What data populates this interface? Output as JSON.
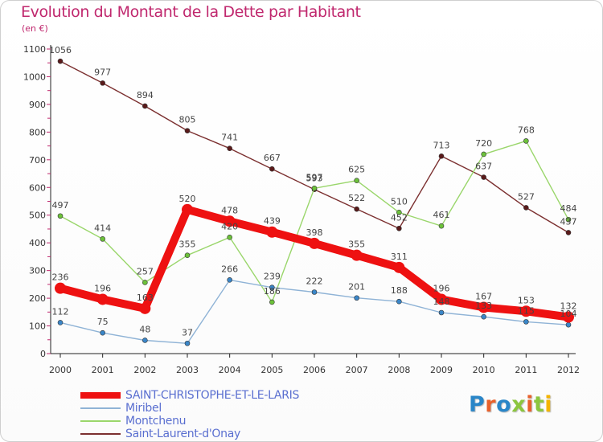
{
  "chart_data": {
    "type": "line",
    "title": "Evolution du Montant de la Dette par Habitant",
    "subtitle": "(en €)",
    "x": [
      "2000",
      "2001",
      "2002",
      "2003",
      "2004",
      "2005",
      "2006",
      "2007",
      "2008",
      "2009",
      "2010",
      "2011",
      "2012"
    ],
    "y_ticks": [
      "0",
      "100",
      "200",
      "300",
      "400",
      "500",
      "600",
      "700",
      "800",
      "900",
      "1000",
      "1100"
    ],
    "ylim": [
      0,
      1100
    ],
    "grid": false,
    "legend_position": "bottom-left",
    "series": [
      {
        "name": "Saint-Laurent-d'Onay",
        "color": "#7b2f2f",
        "marker_color": "#5a1a1a",
        "values": [
          1056,
          977,
          894,
          805,
          741,
          667,
          593,
          522,
          452,
          713,
          637,
          527,
          437
        ],
        "labels": [
          "1056",
          "977",
          "894",
          "805",
          "741",
          "667",
          "593",
          "522",
          "452",
          "713",
          "637",
          "527",
          "437"
        ]
      },
      {
        "name": "Montchenu",
        "color": "#9ad66b",
        "marker_color": "#6cc13a",
        "values": [
          497,
          414,
          257,
          355,
          420,
          186,
          597,
          625,
          510,
          461,
          720,
          768,
          484
        ],
        "labels": [
          "497",
          "414",
          "257",
          "355",
          "420",
          "186",
          "597",
          "625",
          "510",
          "461",
          "720",
          "768",
          "484"
        ]
      },
      {
        "name": "Miribel",
        "color": "#8fb3d6",
        "marker_color": "#3a86c8",
        "values": [
          112,
          75,
          48,
          37,
          266,
          239,
          222,
          201,
          188,
          148,
          133,
          115,
          104
        ],
        "labels": [
          "112",
          "75",
          "48",
          "37",
          "266",
          "239",
          "222",
          "201",
          "188",
          "148",
          "133",
          "115",
          "104"
        ]
      },
      {
        "name": "SAINT-CHRISTOPHE-ET-LE-LARIS",
        "color": "#ee1111",
        "marker_color": "#ee1111",
        "values": [
          236,
          196,
          163,
          520,
          478,
          439,
          398,
          355,
          311,
          196,
          167,
          153,
          132
        ],
        "labels": [
          "236",
          "196",
          "163",
          "520",
          "478",
          "439",
          "398",
          "355",
          "311",
          "196",
          "167",
          "153",
          "132"
        ]
      }
    ]
  },
  "legend": {
    "items": [
      {
        "label": "SAINT-CHRISTOPHE-ET-LE-LARIS",
        "color": "#ee1111",
        "thickness": 8
      },
      {
        "label": "Miribel",
        "color": "#8fb3d6",
        "thickness": 2
      },
      {
        "label": "Montchenu",
        "color": "#9ad66b",
        "thickness": 2
      },
      {
        "label": "Saint-Laurent-d'Onay",
        "color": "#7b2f2f",
        "thickness": 2
      }
    ]
  },
  "logo": {
    "text": "Proxiti",
    "letters": [
      "P",
      "r",
      "o",
      "x",
      "i",
      "t",
      "i"
    ]
  }
}
